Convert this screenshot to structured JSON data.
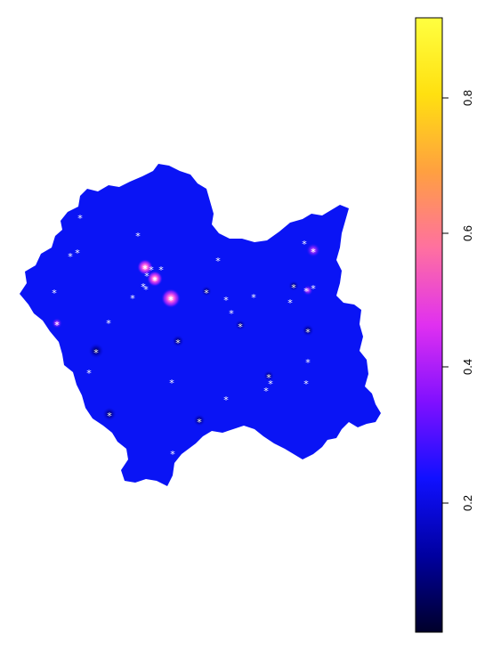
{
  "map": {
    "region_fill": "#0a14f5",
    "point_marker": "*",
    "marker_color": "#ffffff",
    "hotspot_colors": {
      "low": "#0000a0",
      "mid": "#c020ff",
      "high": "#ff60e0"
    }
  },
  "colorbar": {
    "colors": [
      "#00002a",
      "#0000a0",
      "#1010ff",
      "#8010ff",
      "#e030f0",
      "#ff70a0",
      "#ffa040",
      "#ffe010",
      "#ffff40"
    ],
    "tick_labels": [
      "0.2",
      "0.4",
      "0.6",
      "0.8"
    ]
  }
}
